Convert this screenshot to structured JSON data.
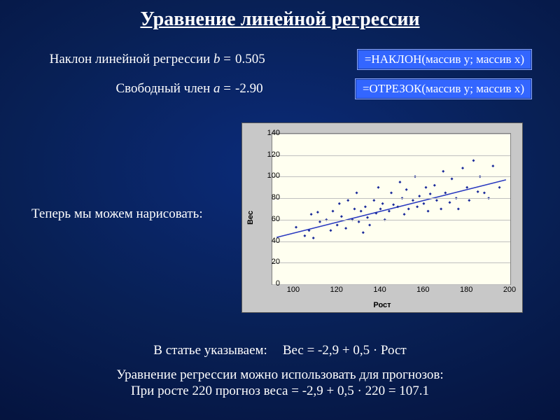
{
  "title": "Уравнение линейной регрессии",
  "slope": {
    "label_pre": "Наклон линейной регрессии ",
    "label_var": "b",
    "eq": " =",
    "value": "0.505",
    "formula": "=НАКЛОН(массив y; массив x)"
  },
  "intercept": {
    "label_pre": "Свободный член ",
    "label_var": "a",
    "eq": " =",
    "value": "-2.90",
    "formula": "=ОТРЕЗОК(массив y; массив x)"
  },
  "draw_label": "Теперь мы можем нарисовать:",
  "article": {
    "prefix": "В статье указываем:",
    "equation": "Вес = -2,9 + 0,5 · Рост"
  },
  "usage_line": "Уравнение регрессии можно использовать для прогнозов:",
  "prediction": "При росте 220 прогноз веса = -2,9 + 0,5 · 220 = 107.1",
  "chart": {
    "type": "scatter",
    "xlabel": "Рост",
    "ylabel": "Вес",
    "xlim": [
      90,
      200
    ],
    "ylim": [
      0,
      140
    ],
    "xtick_start": 100,
    "xtick_step": 20,
    "ytick_start": 0,
    "ytick_step": 20,
    "background_color": "#c8c8c8",
    "plot_background": "#fffff0",
    "grid_color": "#bfbfbf",
    "marker_color": "#1a2a9a",
    "marker_size": 4,
    "line_color": "#2a3ac0",
    "line_width": 1.5,
    "tick_fontsize": 11,
    "label_fontsize": 11,
    "regression": {
      "a": -2.9,
      "b": 0.505
    },
    "points": [
      [
        101,
        53
      ],
      [
        105,
        45
      ],
      [
        107,
        50
      ],
      [
        108,
        65
      ],
      [
        109,
        43
      ],
      [
        111,
        67
      ],
      [
        112,
        58
      ],
      [
        115,
        60
      ],
      [
        117,
        50
      ],
      [
        118,
        68
      ],
      [
        120,
        55
      ],
      [
        121,
        75
      ],
      [
        122,
        63
      ],
      [
        124,
        52
      ],
      [
        125,
        78
      ],
      [
        127,
        60
      ],
      [
        128,
        70
      ],
      [
        129,
        85
      ],
      [
        130,
        58
      ],
      [
        131,
        68
      ],
      [
        133,
        72
      ],
      [
        134,
        62
      ],
      [
        135,
        55
      ],
      [
        137,
        78
      ],
      [
        138,
        66
      ],
      [
        139,
        90
      ],
      [
        140,
        70
      ],
      [
        141,
        75
      ],
      [
        142,
        60
      ],
      [
        144,
        68
      ],
      [
        145,
        85
      ],
      [
        146,
        74
      ],
      [
        148,
        72
      ],
      [
        149,
        95
      ],
      [
        150,
        80
      ],
      [
        151,
        65
      ],
      [
        152,
        88
      ],
      [
        153,
        70
      ],
      [
        155,
        78
      ],
      [
        156,
        100
      ],
      [
        157,
        72
      ],
      [
        158,
        82
      ],
      [
        160,
        75
      ],
      [
        161,
        90
      ],
      [
        162,
        68
      ],
      [
        163,
        84
      ],
      [
        165,
        92
      ],
      [
        166,
        78
      ],
      [
        168,
        70
      ],
      [
        169,
        105
      ],
      [
        170,
        85
      ],
      [
        172,
        76
      ],
      [
        173,
        98
      ],
      [
        175,
        80
      ],
      [
        176,
        70
      ],
      [
        178,
        108
      ],
      [
        180,
        90
      ],
      [
        181,
        78
      ],
      [
        183,
        115
      ],
      [
        185,
        86
      ],
      [
        186,
        100
      ],
      [
        188,
        85
      ],
      [
        190,
        80
      ],
      [
        192,
        110
      ],
      [
        195,
        90
      ],
      [
        132,
        48
      ]
    ]
  }
}
